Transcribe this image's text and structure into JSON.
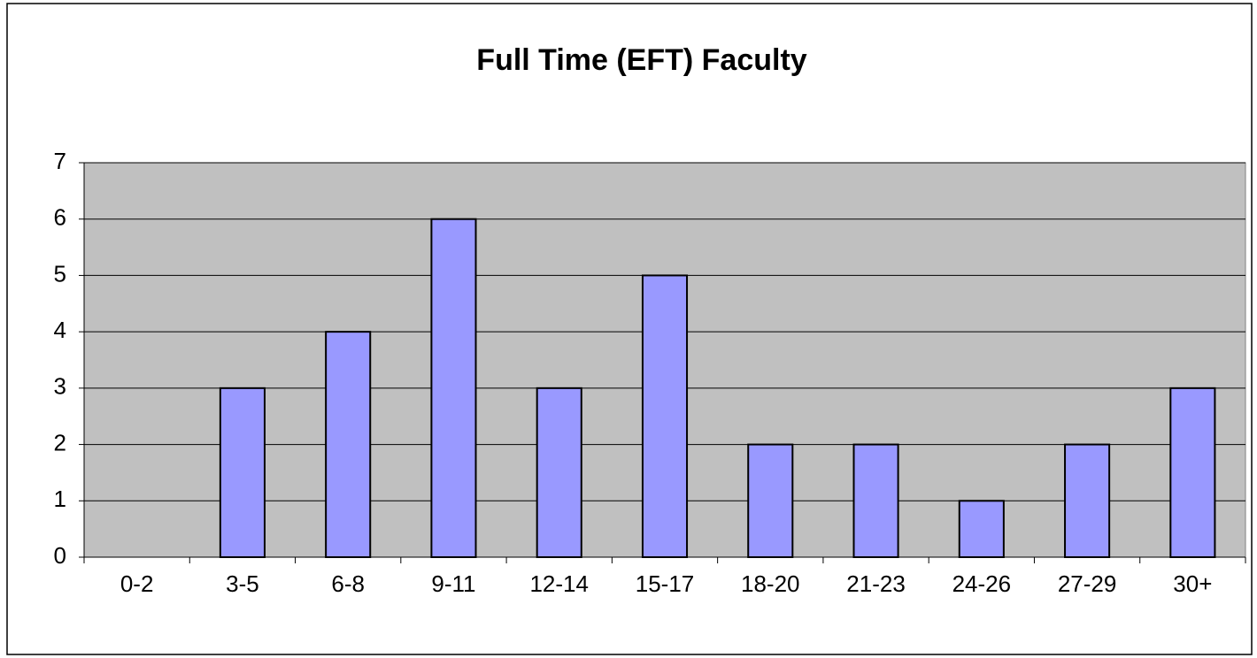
{
  "chart_data": {
    "type": "bar",
    "title": "Full Time (EFT) Faculty",
    "categories": [
      "0-2",
      "3-5",
      "6-8",
      "9-11",
      "12-14",
      "15-17",
      "18-20",
      "21-23",
      "24-26",
      "27-29",
      "30+"
    ],
    "values": [
      0,
      3,
      4,
      6,
      3,
      5,
      2,
      2,
      1,
      2,
      3
    ],
    "color": "#9999ff",
    "ylim": [
      0,
      7
    ],
    "yticks": [
      0,
      1,
      2,
      3,
      4,
      5,
      6,
      7
    ],
    "grid": true
  }
}
